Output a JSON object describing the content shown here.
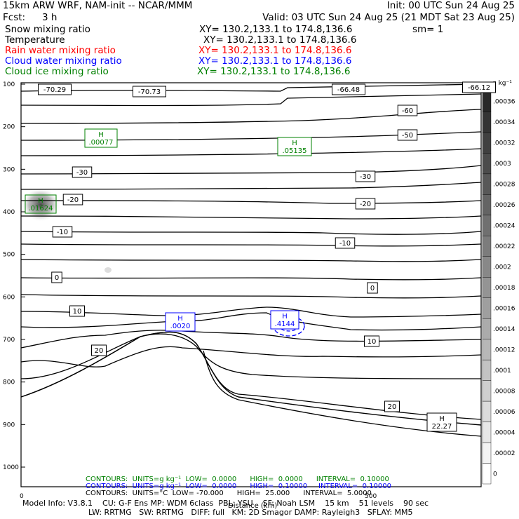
{
  "header": {
    "model": "15km ARW WRF, NAM-init -- NCAR/MMM",
    "init": "Init: 00 UTC Sun 24 Aug 25",
    "fcst_label": "Fcst:",
    "fcst_value": "3 h",
    "valid": "Valid: 03 UTC Sun 24 Aug 25 (21 MDT Sat 23 Aug 25)",
    "fields": [
      {
        "name": "Snow mixing ratio",
        "xy": "XY= 130.2,133.1 to 174.8,136.6",
        "extra": "sm= 1",
        "color": "#000000"
      },
      {
        "name": "Temperature",
        "xy": "XY= 130.2,133.1 to 174.8,136.6",
        "extra": "",
        "color": "#000000"
      },
      {
        "name": "Rain water mixing ratio",
        "xy": "XY= 130.2,133.1 to 174.8,136.6",
        "extra": "",
        "color": "#ff0000"
      },
      {
        "name": "Cloud water mixing ratio",
        "xy": "XY= 130.2,133.1 to 174.8,136.6",
        "extra": "",
        "color": "#0000ff"
      },
      {
        "name": "Cloud ice mixing ratio",
        "xy": "XY= 130.2,133.1 to 174.8,136.6",
        "extra": "",
        "color": "#008000"
      }
    ]
  },
  "chart_data": {
    "type": "contour",
    "xlabel": "Distance (km)",
    "x_ticks": [
      "0",
      "500"
    ],
    "y_ticks": [
      "100",
      "200",
      "300",
      "400",
      "500",
      "600",
      "700",
      "800",
      "900",
      "1000"
    ],
    "colorbar": {
      "unit": "g kg⁻¹",
      "ticks": [
        ".00036",
        ".00034",
        ".00032",
        ".0003",
        ".00028",
        ".00026",
        ".00024",
        ".00022",
        ".0002",
        ".00018",
        ".00016",
        ".00014",
        ".00012",
        ".0001",
        ".00008",
        ".00006",
        ".00004",
        ".00002",
        "0"
      ]
    },
    "isotherm_labels": [
      {
        "value": "-70.29"
      },
      {
        "value": "-70.73"
      },
      {
        "value": "-66.48"
      },
      {
        "value": "-66.12"
      },
      {
        "value": "-60"
      },
      {
        "value": "-50"
      },
      {
        "value": "-30"
      },
      {
        "value": "-30"
      },
      {
        "value": "-20"
      },
      {
        "value": "-20"
      },
      {
        "value": "-10"
      },
      {
        "value": "-10"
      },
      {
        "value": "0"
      },
      {
        "value": "0"
      },
      {
        "value": "10"
      },
      {
        "value": "10"
      },
      {
        "value": "20"
      },
      {
        "value": "20"
      }
    ],
    "maxima": [
      {
        "label": "H",
        "value": ".00077",
        "field": "cloud ice",
        "color": "#008000"
      },
      {
        "label": "H",
        "value": ".05135",
        "field": "cloud ice",
        "color": "#008000"
      },
      {
        "label": "H",
        "value": ".01624",
        "field": "cloud ice",
        "color": "#008000"
      },
      {
        "label": "H",
        "value": ".0020",
        "field": "cloud water",
        "color": "#0000ff"
      },
      {
        "label": "H",
        "value": ".4144",
        "field": "cloud water",
        "color": "#0000ff"
      },
      {
        "label": "H",
        "value": "22.27",
        "field": "temperature",
        "color": "#000000"
      }
    ],
    "contour_info": [
      {
        "text": "CONTOURS:  UNITS=g kg⁻¹  LOW=  0.0000      HIGH=  0.0000      INTERVAL=  0.10000",
        "color": "#008000"
      },
      {
        "text": "CONTOURS:  UNITS=g kg⁻¹  LOW=  0.0000      HIGH=  0.10000     INTERVAL=  0.10000",
        "color": "#0000ff"
      },
      {
        "text": "CONTOURS:  UNITS=°C  LOW= -70.000      HIGH=  25.000      INTERVAL=  5.0000",
        "color": "#000000"
      }
    ]
  },
  "footer": {
    "line1": "Model Info: V3.8.1    CU: G-F Ens MP: WDM 6class  PBL: YSU    SF: Noah LSM    15 km    51 levels    90 sec",
    "line2": "LW: RRTMG   SW: RRTMG   DIFF: full   KM: 2D Smagor DAMP: Rayleigh3   SFLAY: MM5"
  }
}
